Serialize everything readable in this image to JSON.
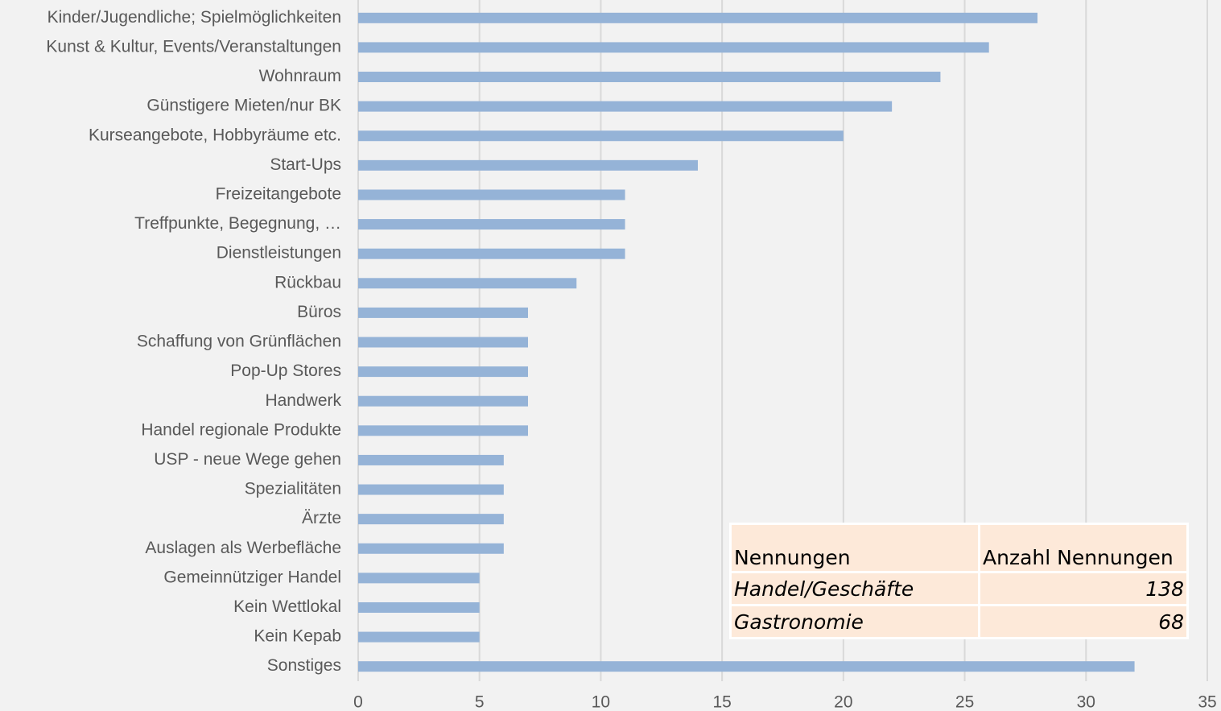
{
  "chart_data": {
    "type": "barh",
    "categories": [
      "Kinder/Jugendliche; Spielmöglichkeiten",
      "Kunst & Kultur, Events/Veranstaltungen",
      "Wohnraum",
      "Günstigere Mieten/nur BK",
      "Kurseangebote, Hobbyräume etc.",
      "Start-Ups",
      "Freizeitangebote",
      "Treffpunkte, Begegnung, …",
      "Dienstleistungen",
      "Rückbau",
      "Büros",
      "Schaffung von Grünflächen",
      "Pop-Up Stores",
      "Handwerk",
      "Handel regionale Produkte",
      "USP - neue Wege gehen",
      "Spezialitäten",
      "Ärzte",
      "Auslagen als Werbefläche",
      "Gemeinnütziger Handel",
      "Kein Wettlokal",
      "Kein Kepab",
      "Sonstiges"
    ],
    "values": [
      28,
      26,
      24,
      22,
      20,
      14,
      11,
      11,
      11,
      9,
      7,
      7,
      7,
      7,
      7,
      6,
      6,
      6,
      6,
      5,
      5,
      5,
      32
    ],
    "color": "#95b3d7",
    "xlim": [
      0,
      35
    ],
    "xticks": [
      0,
      5,
      10,
      15,
      20,
      25,
      30,
      35
    ],
    "grid": true
  },
  "table": {
    "header": [
      "Nennungen",
      "Anzahl Nennungen"
    ],
    "rows": [
      [
        "Handel/Geschäfte",
        "138"
      ],
      [
        "Gastronomie",
        "68"
      ]
    ]
  }
}
